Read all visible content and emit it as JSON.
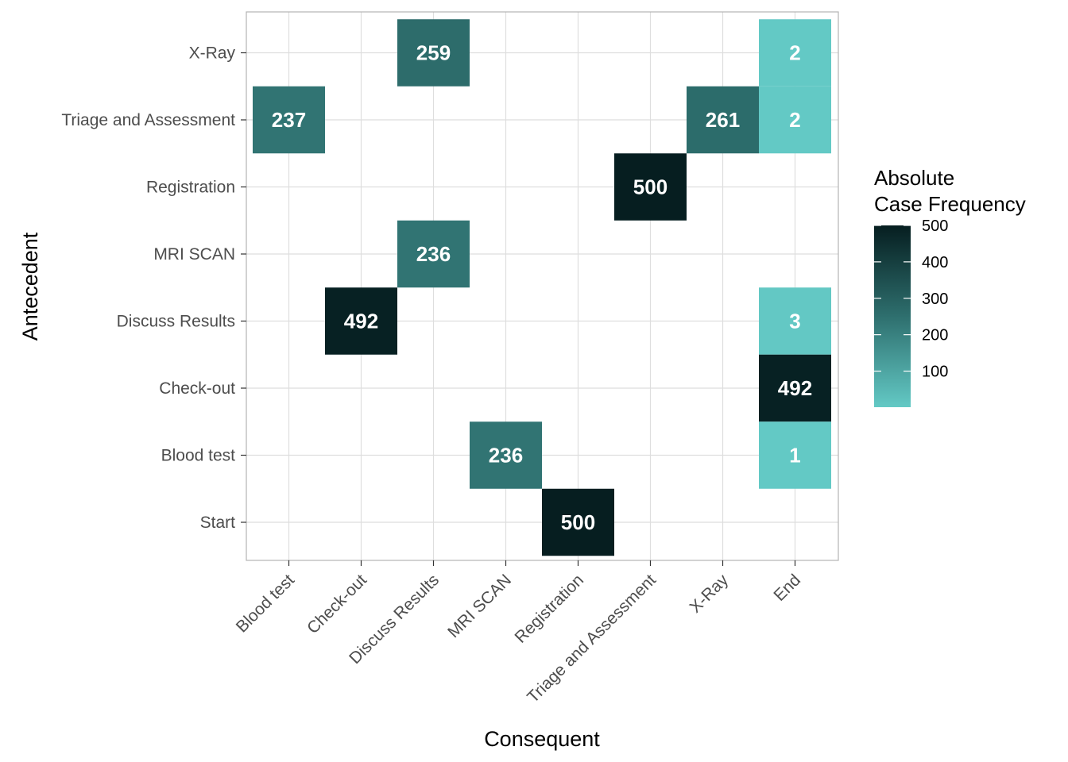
{
  "chart_data": {
    "type": "heatmap",
    "xlabel": "Consequent",
    "ylabel": "Antecedent",
    "x_categories": [
      "Blood test",
      "Check-out",
      "Discuss Results",
      "MRI SCAN",
      "Registration",
      "Triage and Assessment",
      "X-Ray",
      "End"
    ],
    "y_categories": [
      "Start",
      "Blood test",
      "Check-out",
      "Discuss Results",
      "MRI SCAN",
      "Registration",
      "Triage and Assessment",
      "X-Ray"
    ],
    "cells": [
      {
        "antecedent": "X-Ray",
        "consequent": "Discuss Results",
        "value": 259
      },
      {
        "antecedent": "X-Ray",
        "consequent": "End",
        "value": 2
      },
      {
        "antecedent": "Triage and Assessment",
        "consequent": "Blood test",
        "value": 237
      },
      {
        "antecedent": "Triage and Assessment",
        "consequent": "X-Ray",
        "value": 261
      },
      {
        "antecedent": "Triage and Assessment",
        "consequent": "End",
        "value": 2
      },
      {
        "antecedent": "Registration",
        "consequent": "Triage and Assessment",
        "value": 500
      },
      {
        "antecedent": "MRI SCAN",
        "consequent": "Discuss Results",
        "value": 236
      },
      {
        "antecedent": "Discuss Results",
        "consequent": "Check-out",
        "value": 492
      },
      {
        "antecedent": "Discuss Results",
        "consequent": "End",
        "value": 3
      },
      {
        "antecedent": "Check-out",
        "consequent": "End",
        "value": 492
      },
      {
        "antecedent": "Blood test",
        "consequent": "MRI SCAN",
        "value": 236
      },
      {
        "antecedent": "Blood test",
        "consequent": "End",
        "value": 1
      },
      {
        "antecedent": "Start",
        "consequent": "Registration",
        "value": 500
      }
    ],
    "legend": {
      "title_lines": [
        "Absolute",
        "Case Frequency"
      ],
      "ticks": [
        100,
        200,
        300,
        400,
        500
      ],
      "range": [
        1,
        500
      ],
      "low_color": "#63c9c5",
      "high_color": "#061e20",
      "placement": "right"
    },
    "grid": true,
    "panel_border_color": "#b3b3b3",
    "grid_color": "#dedede"
  }
}
